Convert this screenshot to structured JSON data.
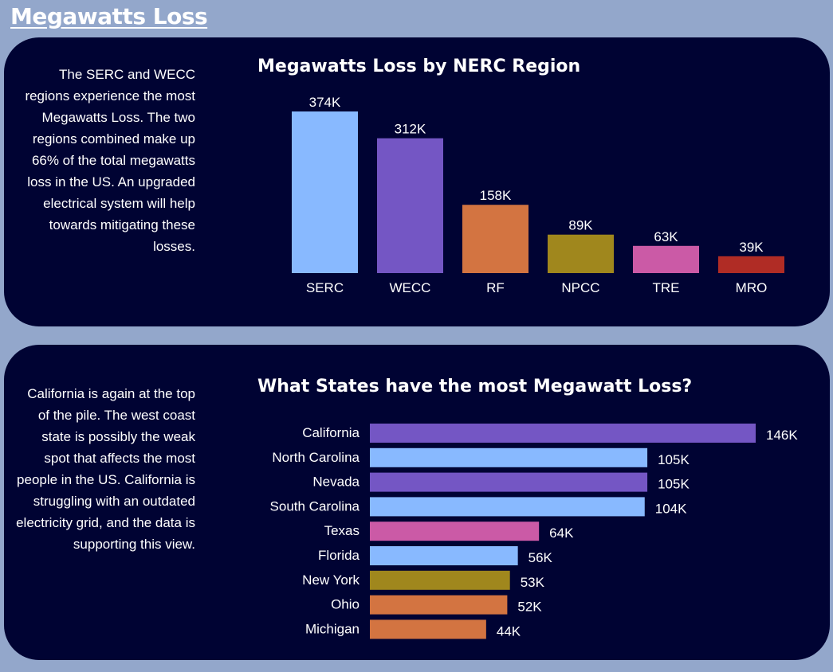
{
  "page": {
    "title": "Megawatts Loss"
  },
  "panels": [
    {
      "description": "The SERC and WECC regions experience the most Megawatts Loss. The two regions combined make up 66% of the total megawatts loss in the US.  An upgraded electrical system will help towards mitigating these losses."
    },
    {
      "description": "California is again at the top of the pile. The west coast state is possibly the weak spot that affects the most people in the US. California is struggling with an outdated electricity grid, and the data is supporting this view."
    }
  ],
  "chart_data": [
    {
      "type": "bar",
      "orientation": "vertical",
      "title": "Megawatts Loss by NERC Region",
      "xlabel": "",
      "ylabel": "",
      "grid": false,
      "ylim": [
        0,
        374
      ],
      "categories": [
        "SERC",
        "WECC",
        "RF",
        "NPCC",
        "TRE",
        "MRO"
      ],
      "values": [
        374,
        312,
        158,
        89,
        63,
        39
      ],
      "data_labels": [
        "374K",
        "312K",
        "158K",
        "89K",
        "63K",
        "39K"
      ],
      "colors": [
        "#88b9ff",
        "#7456c4",
        "#d37441",
        "#a0871d",
        "#cb5aa6",
        "#b02c25"
      ]
    },
    {
      "type": "bar",
      "orientation": "horizontal",
      "title": "What States have the most Megawatt Loss?",
      "xlabel": "",
      "ylabel": "",
      "grid": false,
      "xlim": [
        0,
        146
      ],
      "categories": [
        "California",
        "North Carolina",
        "Nevada",
        "South Carolina",
        "Texas",
        "Florida",
        "New York",
        "Ohio",
        "Michigan"
      ],
      "values": [
        146,
        105,
        105,
        104,
        64,
        56,
        53,
        52,
        44
      ],
      "data_labels": [
        "146K",
        "105K",
        "105K",
        "104K",
        "64K",
        "56K",
        "53K",
        "52K",
        "44K"
      ],
      "colors": [
        "#7456c4",
        "#88b9ff",
        "#7456c4",
        "#88b9ff",
        "#cb5aa6",
        "#88b9ff",
        "#a0871d",
        "#d37441",
        "#d37441"
      ]
    }
  ]
}
